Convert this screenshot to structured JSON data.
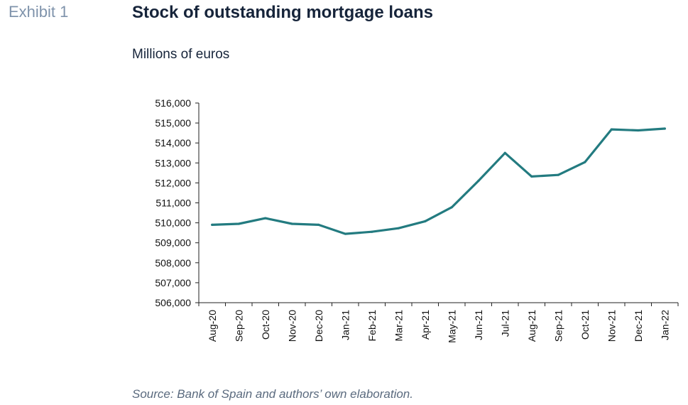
{
  "header": {
    "exhibit": "Exhibit 1",
    "title": "Stock of outstanding mortgage loans",
    "subtitle": "Millions of euros"
  },
  "footer": {
    "source": "Source: Bank of Spain and authors’ own elaboration."
  },
  "colors": {
    "line": "#237b80",
    "axis": "#222222",
    "exhibit": "#7f93ab"
  },
  "chart_data": {
    "type": "line",
    "title": "Stock of outstanding mortgage loans",
    "ylabel": "Millions of euros",
    "xlabel": "",
    "grid": false,
    "legend": "none",
    "ylim": [
      506000,
      516000
    ],
    "yticks": [
      506000,
      507000,
      508000,
      509000,
      510000,
      511000,
      512000,
      513000,
      514000,
      515000,
      516000
    ],
    "ytick_labels": [
      "506,000",
      "507,000",
      "508,000",
      "509,000",
      "510,000",
      "511,000",
      "512,000",
      "513,000",
      "514,000",
      "515,000",
      "516,000"
    ],
    "categories": [
      "Aug-20",
      "Sep-20",
      "Oct-20",
      "Nov-20",
      "Dec-20",
      "Jan-21",
      "Feb-21",
      "Mar-21",
      "Apr-21",
      "May-21",
      "Jun-21",
      "Jul-21",
      "Aug-21",
      "Sep-21",
      "Oct-21",
      "Nov-21",
      "Dec-21",
      "Jan-22"
    ],
    "series": [
      {
        "values": [
          509900,
          509950,
          510230,
          509950,
          509900,
          509450,
          509550,
          509730,
          510080,
          510780,
          512100,
          513500,
          512320,
          512400,
          513040,
          514680,
          514630,
          514720
        ]
      }
    ]
  }
}
